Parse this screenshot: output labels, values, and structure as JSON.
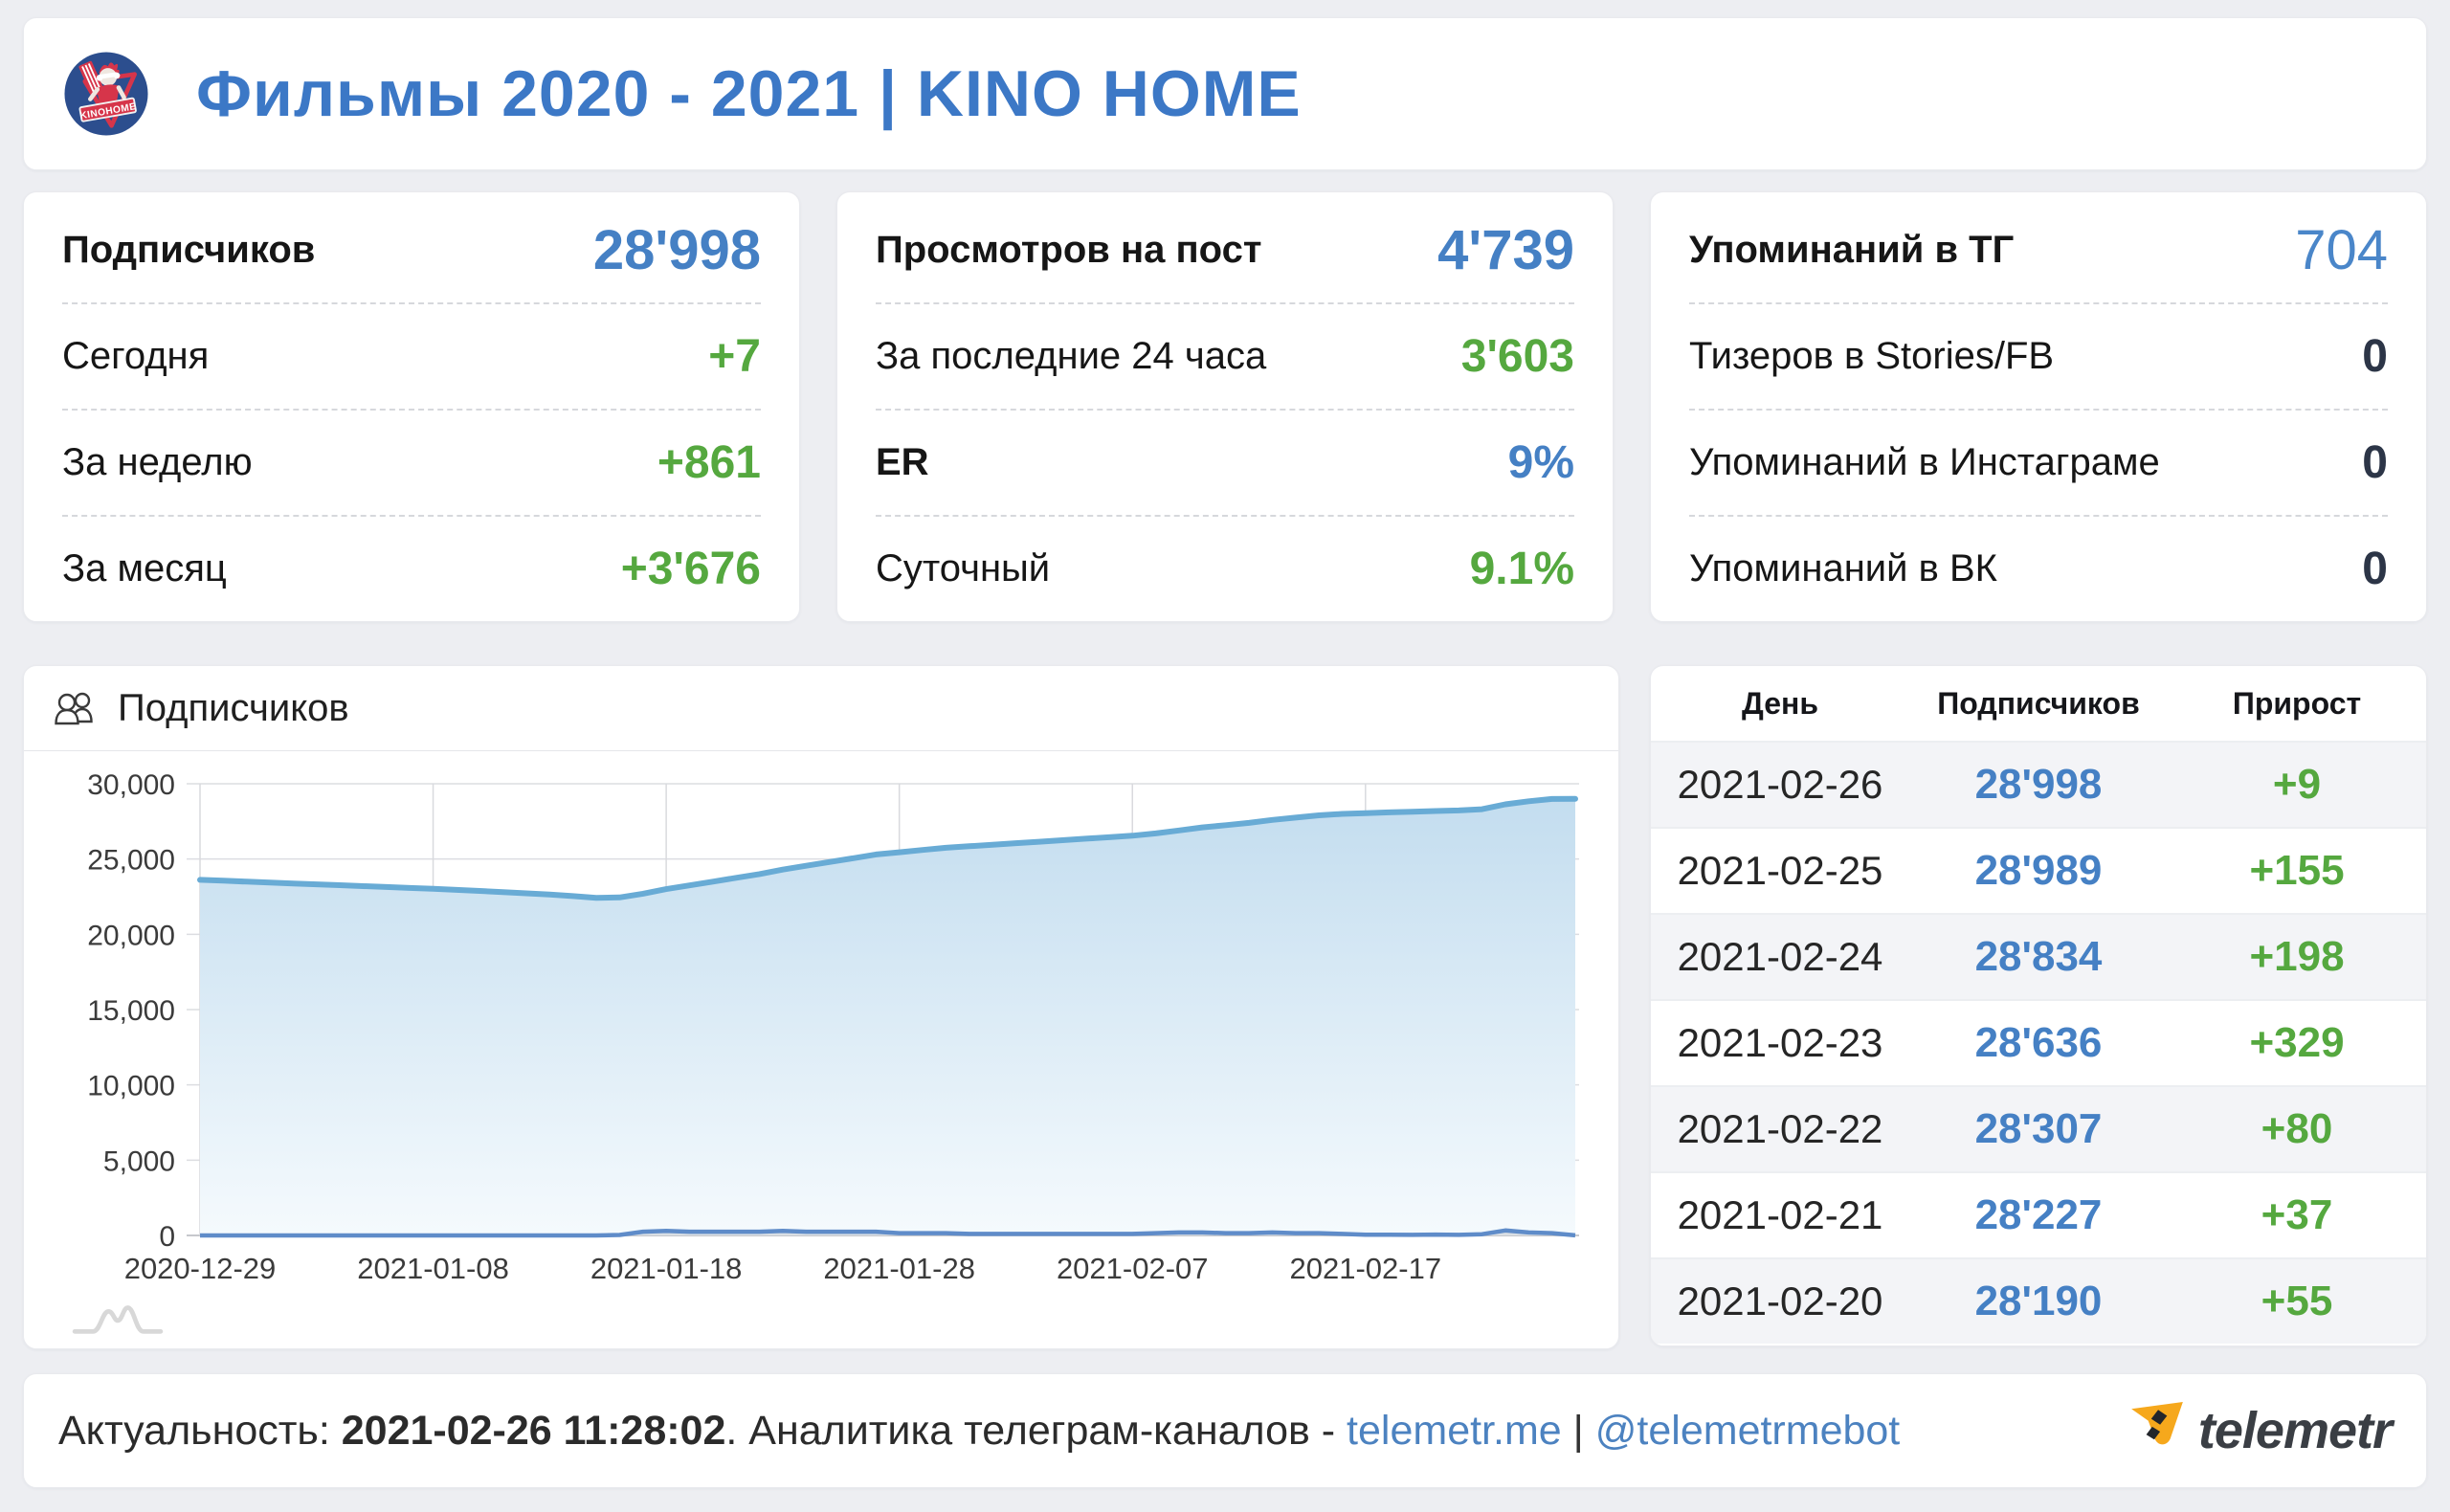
{
  "colors": {
    "page_bg": "#edeef2",
    "accent_blue": "#4580c4",
    "title_blue": "#3c78c6",
    "green": "#55a83f",
    "dark_value": "#2c3547",
    "chart_line": "#68abd5",
    "chart_area_top": "#c3ddef",
    "chart_area_bottom": "#f5fafd",
    "growth_line": "#5f8cc9",
    "link_blue": "#4c82c0",
    "brand_orange": "#f6a81c"
  },
  "header": {
    "title": "Фильмы 2020 - 2021 | KINO HOME",
    "logo_badge_text": "KINOHOME"
  },
  "stat_cards": [
    {
      "rows": [
        {
          "label": "Подписчиков",
          "value": "28'998"
        },
        {
          "label": "Сегодня",
          "value": "+7"
        },
        {
          "label": "За неделю",
          "value": "+861"
        },
        {
          "label": "За месяц",
          "value": "+3'676"
        }
      ]
    },
    {
      "rows": [
        {
          "label": "Просмотров на пост",
          "value": "4'739"
        },
        {
          "label": "За последние 24 часа",
          "value": "3'603"
        },
        {
          "label": "ER",
          "value": "9%"
        },
        {
          "label": "Суточный",
          "value": "9.1%"
        }
      ]
    },
    {
      "rows": [
        {
          "label": "Упоминаний в ТГ",
          "value": "704"
        },
        {
          "label": "Тизеров в Stories/FB",
          "value": "0"
        },
        {
          "label": "Упоминаний в Инстаграме",
          "value": "0"
        },
        {
          "label": "Упоминаний в ВК",
          "value": "0"
        }
      ]
    }
  ],
  "chart_card": {
    "title": "Подписчиков",
    "icon": "users-icon",
    "navigator_icon": "sparkline-icon"
  },
  "chart_data": {
    "type": "area",
    "title": "Подписчиков",
    "ylim": [
      0,
      30000
    ],
    "yticks": [
      0,
      5000,
      10000,
      15000,
      20000,
      25000,
      30000
    ],
    "ytick_labels": [
      "0",
      "5,000",
      "10,000",
      "15,000",
      "20,000",
      "25,000",
      "30,000"
    ],
    "xtick_labels": [
      "2020-12-29",
      "2021-01-08",
      "2021-01-18",
      "2021-01-28",
      "2021-02-07",
      "2021-02-17"
    ],
    "xtick_indices": [
      0,
      10,
      20,
      30,
      40,
      50
    ],
    "grid": true,
    "legend": "none",
    "dates": [
      "2020-12-29",
      "2020-12-30",
      "2020-12-31",
      "2021-01-01",
      "2021-01-02",
      "2021-01-03",
      "2021-01-04",
      "2021-01-05",
      "2021-01-06",
      "2021-01-07",
      "2021-01-08",
      "2021-01-09",
      "2021-01-10",
      "2021-01-11",
      "2021-01-12",
      "2021-01-13",
      "2021-01-14",
      "2021-01-15",
      "2021-01-16",
      "2021-01-17",
      "2021-01-18",
      "2021-01-19",
      "2021-01-20",
      "2021-01-21",
      "2021-01-22",
      "2021-01-23",
      "2021-01-24",
      "2021-01-25",
      "2021-01-26",
      "2021-01-27",
      "2021-01-28",
      "2021-01-29",
      "2021-01-30",
      "2021-01-31",
      "2021-02-01",
      "2021-02-02",
      "2021-02-03",
      "2021-02-04",
      "2021-02-05",
      "2021-02-06",
      "2021-02-07",
      "2021-02-08",
      "2021-02-09",
      "2021-02-10",
      "2021-02-11",
      "2021-02-12",
      "2021-02-13",
      "2021-02-14",
      "2021-02-15",
      "2021-02-16",
      "2021-02-17",
      "2021-02-18",
      "2021-02-19",
      "2021-02-20",
      "2021-02-21",
      "2021-02-22",
      "2021-02-23",
      "2021-02-24",
      "2021-02-25",
      "2021-02-26"
    ],
    "series": [
      {
        "name": "Подписчиков",
        "values": [
          23620,
          23560,
          23500,
          23440,
          23380,
          23320,
          23260,
          23200,
          23140,
          23080,
          23020,
          22950,
          22880,
          22800,
          22720,
          22640,
          22540,
          22420,
          22450,
          22700,
          23000,
          23250,
          23500,
          23750,
          24000,
          24300,
          24550,
          24800,
          25050,
          25300,
          25450,
          25600,
          25750,
          25850,
          25950,
          26050,
          26150,
          26250,
          26350,
          26450,
          26550,
          26700,
          26900,
          27100,
          27250,
          27400,
          27600,
          27750,
          27900,
          28000,
          28050,
          28100,
          28135,
          28190,
          28227,
          28307,
          28636,
          28834,
          28989,
          28998
        ]
      },
      {
        "name": "Прирост",
        "values": [
          0,
          0,
          0,
          0,
          0,
          0,
          0,
          0,
          0,
          0,
          0,
          0,
          0,
          0,
          0,
          0,
          0,
          0,
          30,
          250,
          300,
          250,
          250,
          250,
          250,
          300,
          250,
          250,
          250,
          250,
          150,
          150,
          150,
          100,
          100,
          100,
          100,
          100,
          100,
          100,
          100,
          150,
          200,
          200,
          150,
          150,
          200,
          150,
          150,
          100,
          50,
          50,
          35,
          55,
          37,
          80,
          329,
          198,
          155,
          9
        ]
      }
    ]
  },
  "table": {
    "headers": [
      "День",
      "Подписчиков",
      "Прирост"
    ],
    "rows": [
      [
        "2021-02-26",
        "28'998",
        "+9"
      ],
      [
        "2021-02-25",
        "28'989",
        "+155"
      ],
      [
        "2021-02-24",
        "28'834",
        "+198"
      ],
      [
        "2021-02-23",
        "28'636",
        "+329"
      ],
      [
        "2021-02-22",
        "28'307",
        "+80"
      ],
      [
        "2021-02-21",
        "28'227",
        "+37"
      ],
      [
        "2021-02-20",
        "28'190",
        "+55"
      ]
    ]
  },
  "footer": {
    "label": "Актуальность: ",
    "datetime": "2021-02-26 11:28:02",
    "middle": ". Аналитика телеграм-каналов - ",
    "link_site": "telemetr.me",
    "separator": " | ",
    "link_bot": "@telemetrmebot",
    "brand": "telemetr"
  }
}
